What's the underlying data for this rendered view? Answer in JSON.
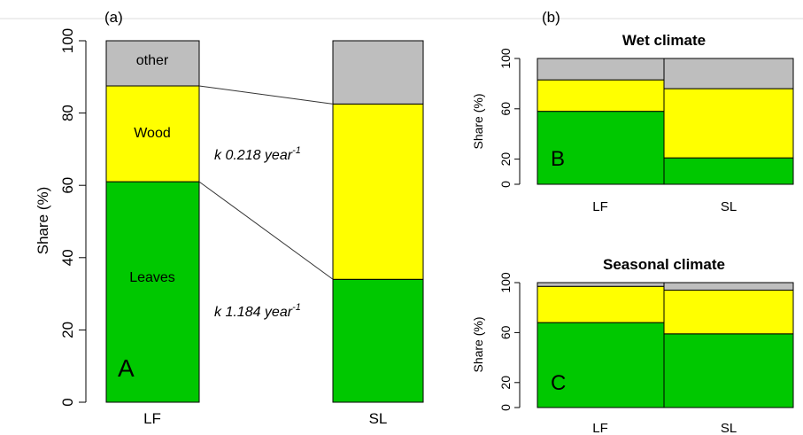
{
  "colors": {
    "green": "#00c800",
    "yellow": "#ffff00",
    "gray": "#bebebe"
  },
  "chart_data": [
    {
      "type": "bar",
      "stacked": true,
      "panel_label": "(a)",
      "panel_letter": "A",
      "ylabel": "Share (%)",
      "ylim": [
        0,
        100
      ],
      "yticks": [
        0,
        20,
        40,
        60,
        80,
        100
      ],
      "categories": [
        "LF",
        "SL"
      ],
      "series": [
        {
          "name": "Leaves",
          "color": "green",
          "values": [
            61,
            34
          ]
        },
        {
          "name": "Wood",
          "color": "yellow",
          "values": [
            26.5,
            48.5
          ]
        },
        {
          "name": "other",
          "color": "gray",
          "values": [
            12.5,
            17.5
          ]
        }
      ],
      "segment_labels": {
        "leaves": "Leaves",
        "wood": "Wood",
        "other": "other"
      },
      "annotations": {
        "k_wood_prefix": "k 0.218 year",
        "k_wood_sup": "-1",
        "k_leaves_prefix": "k 1.184 year",
        "k_leaves_sup": "-1"
      }
    },
    {
      "type": "bar",
      "stacked": true,
      "panel_label": "(b)",
      "title": "Wet climate",
      "panel_letter": "B",
      "ylabel": "Share (%)",
      "ylim": [
        0,
        100
      ],
      "yticks": [
        0,
        20,
        60,
        100
      ],
      "categories": [
        "LF",
        "SL"
      ],
      "series": [
        {
          "color": "green",
          "values": [
            58,
            21
          ]
        },
        {
          "color": "yellow",
          "values": [
            25,
            55
          ]
        },
        {
          "color": "gray",
          "values": [
            17,
            24
          ]
        }
      ]
    },
    {
      "type": "bar",
      "stacked": true,
      "title": "Seasonal climate",
      "panel_letter": "C",
      "ylabel": "Share (%)",
      "ylim": [
        0,
        100
      ],
      "yticks": [
        0,
        20,
        60,
        100
      ],
      "categories": [
        "LF",
        "SL"
      ],
      "series": [
        {
          "color": "green",
          "values": [
            68,
            59
          ]
        },
        {
          "color": "yellow",
          "values": [
            29,
            35
          ]
        },
        {
          "color": "gray",
          "values": [
            3,
            6
          ]
        }
      ]
    }
  ]
}
